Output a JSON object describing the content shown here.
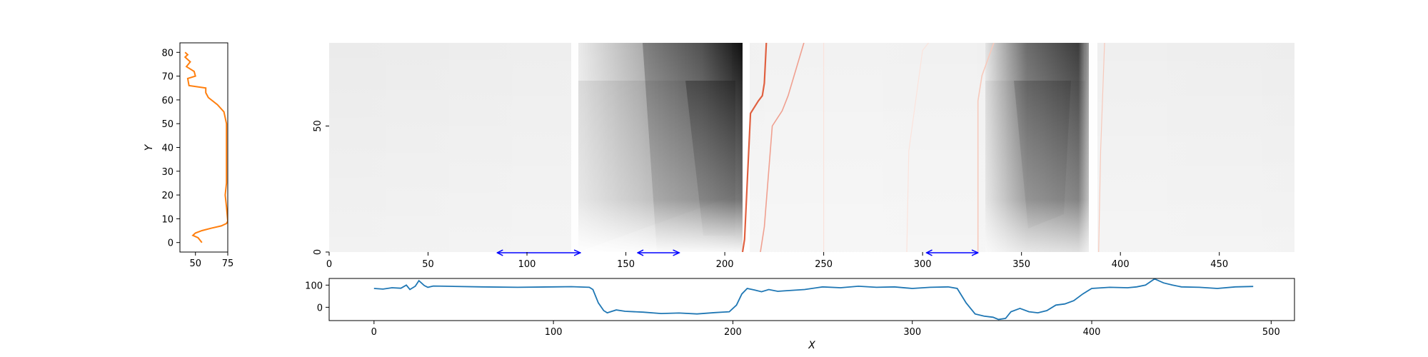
{
  "chart_data": [
    {
      "type": "line",
      "panel": "left-profile",
      "orientation": "vertical",
      "ylabel": "Y",
      "xlabel": "",
      "xlim": [
        38,
        75
      ],
      "ylim": [
        -4,
        84
      ],
      "xticks": [
        50,
        75
      ],
      "yticks": [
        0,
        10,
        20,
        30,
        40,
        50,
        60,
        70,
        80
      ],
      "color": "#ff7f0e",
      "series": [
        {
          "x": [
            55,
            52,
            48,
            50,
            55,
            62,
            70,
            74,
            75,
            74,
            73,
            74,
            74,
            74,
            74,
            74,
            74,
            72,
            67,
            60,
            58,
            58,
            45,
            44,
            50,
            49,
            43,
            46,
            42,
            44,
            42
          ],
          "y": [
            0,
            2,
            3,
            4,
            5,
            6,
            7,
            8,
            9,
            15,
            20,
            25,
            30,
            35,
            40,
            45,
            50,
            55,
            58,
            61,
            63,
            65,
            66,
            69,
            70,
            72,
            74,
            76,
            78,
            79,
            80
          ]
        }
      ]
    },
    {
      "type": "heatmap",
      "panel": "main-image",
      "colormap": "grays",
      "xlim": [
        0,
        488
      ],
      "ylim": [
        0,
        83
      ],
      "xticks": [
        0,
        50,
        100,
        150,
        200,
        250,
        300,
        350,
        400,
        450
      ],
      "yticks": [
        0,
        50
      ],
      "contours": [
        {
          "x": [
            209,
            210,
            213,
            217,
            219,
            220,
            221
          ],
          "y": [
            0,
            5,
            55,
            60,
            62,
            67,
            83
          ],
          "color": "#e06040",
          "strength": "strong"
        },
        {
          "x": [
            218,
            220,
            224,
            229,
            230,
            232,
            240
          ],
          "y": [
            0,
            10,
            50,
            56,
            58,
            62,
            83
          ],
          "color": "#f0a090",
          "strength": "medium"
        },
        {
          "x": [
            250,
            250
          ],
          "y": [
            0,
            83
          ],
          "color": "#fbe3dc",
          "strength": "faint"
        },
        {
          "x": [
            292,
            293,
            300,
            303
          ],
          "y": [
            0,
            40,
            80,
            83
          ],
          "color": "#fbe3dc",
          "strength": "faint"
        },
        {
          "x": [
            328,
            328,
            330,
            336
          ],
          "y": [
            0,
            60,
            70,
            83
          ],
          "color": "#f7c9bb",
          "strength": "medium"
        },
        {
          "x": [
            389,
            390,
            392
          ],
          "y": [
            0,
            40,
            83
          ],
          "color": "#f7c9bb",
          "strength": "faint"
        }
      ],
      "arrows": [
        {
          "x0": 85,
          "x1": 127,
          "color": "#0000ff"
        },
        {
          "x0": 156,
          "x1": 177,
          "color": "#0000ff"
        },
        {
          "x0": 302,
          "x1": 328,
          "color": "#0000ff"
        }
      ]
    },
    {
      "type": "line",
      "panel": "bottom-profile",
      "xlabel": "X",
      "ylabel": "",
      "xlim": [
        -25,
        513
      ],
      "ylim": [
        -60,
        130
      ],
      "xticks": [
        0,
        100,
        200,
        300,
        400,
        500
      ],
      "yticks": [
        0,
        100
      ],
      "color": "#1f77b4",
      "series": [
        {
          "x": [
            0,
            5,
            10,
            15,
            18,
            20,
            23,
            25,
            28,
            30,
            33,
            40,
            60,
            80,
            100,
            110,
            120,
            122,
            125,
            128,
            130,
            135,
            140,
            150,
            160,
            170,
            180,
            190,
            198,
            202,
            205,
            208,
            212,
            216,
            220,
            225,
            230,
            240,
            250,
            260,
            270,
            280,
            290,
            300,
            310,
            320,
            325,
            330,
            335,
            340,
            345,
            348,
            352,
            355,
            360,
            365,
            370,
            375,
            380,
            385,
            390,
            395,
            400,
            410,
            420,
            425,
            430,
            435,
            440,
            445,
            450,
            460,
            470,
            480,
            490
          ],
          "y": [
            85,
            82,
            88,
            86,
            100,
            80,
            95,
            120,
            98,
            90,
            96,
            95,
            92,
            90,
            92,
            93,
            90,
            80,
            20,
            -15,
            -25,
            -12,
            -18,
            -22,
            -28,
            -26,
            -30,
            -24,
            -20,
            10,
            60,
            85,
            78,
            70,
            80,
            72,
            75,
            80,
            92,
            88,
            95,
            90,
            92,
            85,
            90,
            92,
            85,
            20,
            -30,
            -40,
            -45,
            -55,
            -50,
            -20,
            -5,
            -20,
            -25,
            -15,
            10,
            15,
            30,
            60,
            85,
            90,
            88,
            92,
            100,
            128,
            110,
            100,
            92,
            90,
            85,
            92,
            94
          ]
        }
      ]
    }
  ]
}
